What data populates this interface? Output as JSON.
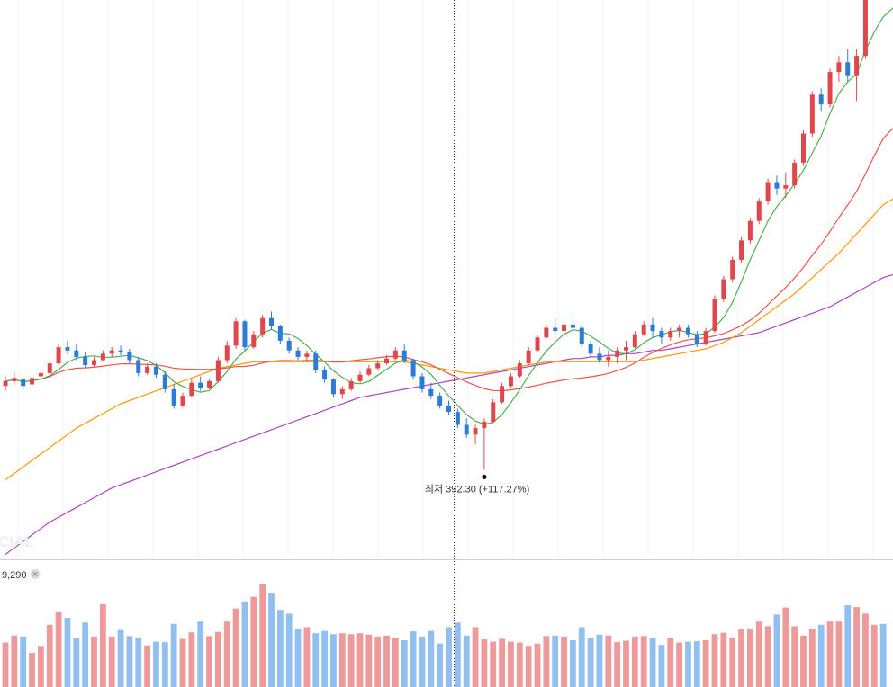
{
  "chart_data": {
    "type": "candlestick",
    "low_marker": {
      "label": "최저 392.30 (+117.27%)",
      "value": 392.3,
      "change_pct": 117.27
    },
    "volume_label": "9,290",
    "watermark": "CIAL",
    "up_color": "#e0474c",
    "down_color": "#2e7bd6",
    "up_volume_color": "#ef9a9a",
    "down_volume_color": "#90bff0",
    "ma_colors": {
      "ma5": "#4caf50",
      "ma20": "#ef5350",
      "ma60": "#ff9800",
      "ma120": "#ab47bc"
    },
    "ohlc": [
      [
        444,
        450,
        441,
        447
      ],
      [
        447,
        452,
        445,
        449
      ],
      [
        448,
        449,
        443,
        444
      ],
      [
        445,
        451,
        444,
        449
      ],
      [
        450,
        454,
        448,
        452
      ],
      [
        452,
        460,
        451,
        458
      ],
      [
        458,
        470,
        457,
        468
      ],
      [
        468,
        472,
        464,
        466
      ],
      [
        466,
        470,
        460,
        462
      ],
      [
        462,
        465,
        455,
        457
      ],
      [
        457,
        462,
        456,
        460
      ],
      [
        460,
        466,
        459,
        464
      ],
      [
        464,
        468,
        462,
        466
      ],
      [
        466,
        469,
        463,
        465
      ],
      [
        465,
        467,
        458,
        460
      ],
      [
        460,
        462,
        450,
        452
      ],
      [
        452,
        458,
        451,
        456
      ],
      [
        456,
        458,
        449,
        451
      ],
      [
        451,
        453,
        440,
        442
      ],
      [
        442,
        445,
        430,
        432
      ],
      [
        432,
        440,
        431,
        438
      ],
      [
        438,
        448,
        437,
        446
      ],
      [
        446,
        450,
        441,
        443
      ],
      [
        443,
        448,
        442,
        447
      ],
      [
        447,
        462,
        446,
        460
      ],
      [
        460,
        472,
        458,
        469
      ],
      [
        469,
        486,
        467,
        484
      ],
      [
        484,
        485,
        466,
        468
      ],
      [
        468,
        478,
        467,
        476
      ],
      [
        476,
        488,
        474,
        486
      ],
      [
        486,
        490,
        479,
        481
      ],
      [
        481,
        482,
        470,
        472
      ],
      [
        472,
        474,
        464,
        466
      ],
      [
        466,
        468,
        460,
        462
      ],
      [
        462,
        466,
        459,
        464
      ],
      [
        464,
        466,
        452,
        454
      ],
      [
        454,
        456,
        446,
        448
      ],
      [
        448,
        449,
        437,
        439
      ],
      [
        439,
        444,
        436,
        442
      ],
      [
        442,
        449,
        441,
        447
      ],
      [
        447,
        453,
        446,
        451
      ],
      [
        451,
        457,
        450,
        455
      ],
      [
        455,
        460,
        454,
        458
      ],
      [
        458,
        463,
        457,
        461
      ],
      [
        461,
        468,
        460,
        466
      ],
      [
        466,
        470,
        458,
        460
      ],
      [
        460,
        461,
        448,
        450
      ],
      [
        450,
        452,
        440,
        442
      ],
      [
        442,
        446,
        436,
        438
      ],
      [
        438,
        440,
        430,
        432
      ],
      [
        432,
        435,
        426,
        428
      ],
      [
        428,
        430,
        418,
        420
      ],
      [
        420,
        424,
        412,
        414
      ],
      [
        414,
        420,
        408,
        418
      ],
      [
        418,
        424,
        392.3,
        422
      ],
      [
        422,
        436,
        421,
        434
      ],
      [
        434,
        446,
        433,
        444
      ],
      [
        444,
        452,
        443,
        450
      ],
      [
        450,
        460,
        449,
        458
      ],
      [
        458,
        468,
        457,
        466
      ],
      [
        466,
        476,
        465,
        474
      ],
      [
        474,
        482,
        473,
        480
      ],
      [
        480,
        486,
        476,
        478
      ],
      [
        478,
        484,
        474,
        482
      ],
      [
        482,
        488,
        476,
        480
      ],
      [
        480,
        482,
        468,
        470
      ],
      [
        470,
        472,
        462,
        464
      ],
      [
        464,
        468,
        458,
        460
      ],
      [
        460,
        466,
        456,
        462
      ],
      [
        462,
        468,
        458,
        466
      ],
      [
        466,
        472,
        460,
        468
      ],
      [
        468,
        478,
        467,
        476
      ],
      [
        476,
        484,
        475,
        482
      ],
      [
        482,
        486,
        474,
        478
      ],
      [
        478,
        480,
        470,
        474
      ],
      [
        474,
        480,
        472,
        478
      ],
      [
        478,
        482,
        474,
        480
      ],
      [
        480,
        482,
        474,
        476
      ],
      [
        476,
        478,
        468,
        470
      ],
      [
        470,
        480,
        469,
        478
      ],
      [
        478,
        500,
        477,
        498
      ],
      [
        498,
        512,
        496,
        510
      ],
      [
        510,
        524,
        508,
        522
      ],
      [
        522,
        536,
        520,
        534
      ],
      [
        534,
        548,
        532,
        546
      ],
      [
        546,
        560,
        544,
        558
      ],
      [
        558,
        572,
        556,
        570
      ],
      [
        570,
        574,
        562,
        566
      ],
      [
        566,
        576,
        560,
        568
      ],
      [
        568,
        584,
        566,
        582
      ],
      [
        582,
        602,
        580,
        600
      ],
      [
        600,
        626,
        598,
        624
      ],
      [
        624,
        628,
        614,
        618
      ],
      [
        618,
        640,
        616,
        638
      ],
      [
        638,
        648,
        632,
        644
      ],
      [
        644,
        652,
        632,
        636
      ],
      [
        636,
        652,
        620,
        648
      ],
      [
        648,
        704,
        646,
        690
      ],
      [
        690,
        728,
        684,
        696
      ],
      [
        696,
        712,
        686,
        690
      ]
    ],
    "volumes": [
      9500,
      11000,
      10800,
      7300,
      8800,
      13300,
      16000,
      14800,
      10400,
      13800,
      10800,
      17700,
      10800,
      12200,
      10900,
      10600,
      8900,
      9700,
      9600,
      13500,
      10300,
      11700,
      14000,
      10900,
      11800,
      14000,
      16800,
      18300,
      19300,
      22000,
      20000,
      16500,
      15700,
      12500,
      12800,
      11500,
      12000,
      11300,
      11500,
      11300,
      11500,
      11200,
      10800,
      11000,
      10500,
      10000,
      11900,
      10800,
      12000,
      9300,
      12800,
      13800,
      11000,
      12800,
      10200,
      9700,
      10300,
      9700,
      9500,
      8800,
      9300,
      10900,
      11000,
      10800,
      10000,
      12800,
      10500,
      11200,
      11000,
      9600,
      9900,
      10800,
      10900,
      10500,
      9000,
      10500,
      9500,
      9700,
      9800,
      10000,
      11300,
      11600,
      10600,
      12400,
      12500,
      14000,
      13000,
      15500,
      17000,
      13000,
      11000,
      12500,
      13300,
      14000,
      14000,
      17500,
      17100,
      15700,
      13300,
      13500
    ],
    "ma5_lookback": 5,
    "ma20_lookback": 20,
    "ma60_series": [
      386,
      390,
      394,
      398,
      402,
      406,
      410,
      414,
      418,
      421,
      424,
      427,
      430,
      433,
      435,
      437,
      439,
      441,
      443,
      445,
      447,
      449,
      451,
      453,
      455,
      456,
      457,
      458,
      459,
      459,
      459,
      459,
      459,
      459,
      459,
      459,
      459,
      459,
      459,
      459,
      459,
      459,
      459,
      459,
      459,
      459,
      458,
      457,
      456,
      455,
      454,
      453,
      452,
      452,
      452,
      453,
      454,
      455,
      456,
      457,
      458,
      459,
      459,
      459,
      459,
      459,
      459,
      459,
      459,
      459,
      459,
      459,
      460,
      461,
      462,
      463,
      464,
      465,
      466,
      467,
      469,
      471,
      474,
      477,
      481,
      485,
      489,
      493,
      497,
      501,
      506,
      511,
      516,
      521,
      526,
      532,
      538,
      544,
      550,
      556
    ],
    "ma120_series": [
      340,
      344,
      348,
      352,
      356,
      360,
      363,
      366,
      369,
      372,
      375,
      378,
      381,
      383,
      385,
      387,
      389,
      391,
      393,
      395,
      397,
      399,
      401,
      403,
      405,
      407,
      409,
      411,
      413,
      415,
      417,
      419,
      421,
      423,
      425,
      427,
      429,
      431,
      433,
      435,
      437,
      438,
      439,
      440,
      441,
      442,
      443,
      444,
      445,
      446,
      447,
      448,
      449,
      450,
      451,
      452,
      453,
      454,
      455,
      456,
      457,
      458,
      459,
      460,
      461,
      461,
      462,
      462,
      463,
      463,
      464,
      464,
      465,
      466,
      466,
      467,
      468,
      469,
      470,
      471,
      472,
      473,
      474,
      475,
      476,
      477,
      479,
      481,
      483,
      485,
      487,
      489,
      491,
      493,
      496,
      499,
      502,
      505,
      508,
      511
    ]
  }
}
